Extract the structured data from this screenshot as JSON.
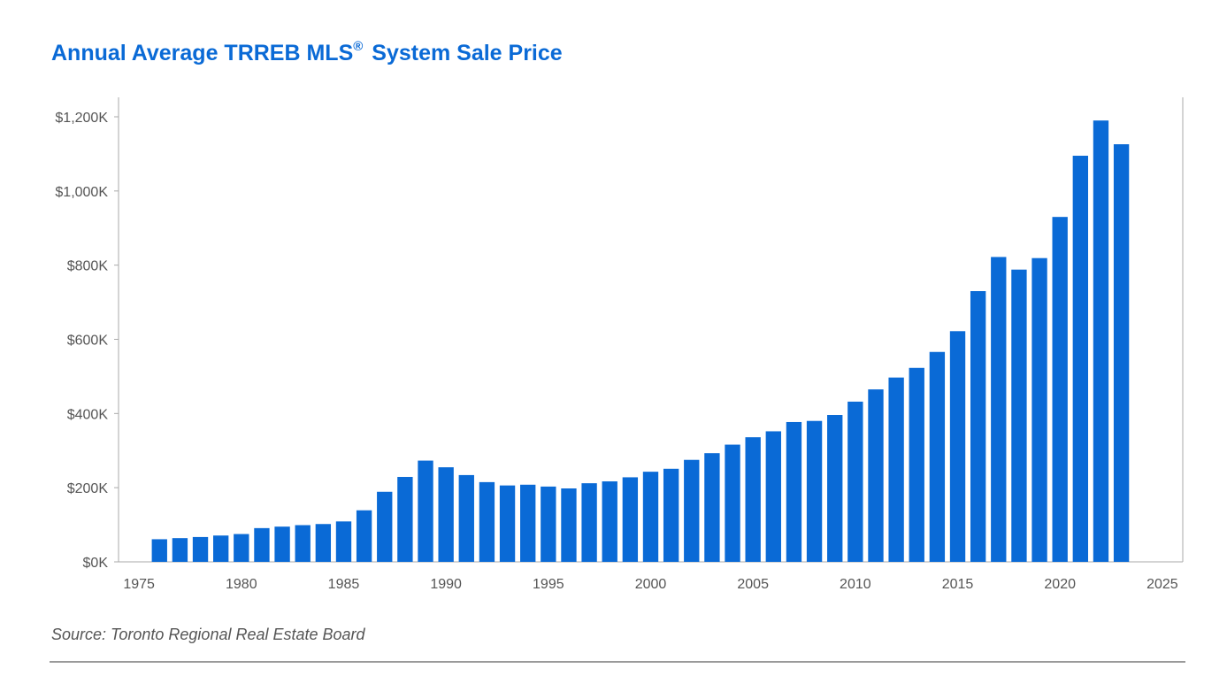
{
  "title": {
    "main": "Annual Average TRREB MLS",
    "registered": "®",
    "rest": "System Sale Price"
  },
  "source": "Source: Toronto Regional Real Estate Board",
  "colors": {
    "bar": "#0a6ad6",
    "title": "#0a6ad6",
    "axis_text": "#555555",
    "frame": "#aaaaaa"
  },
  "chart_data": {
    "type": "bar",
    "title": "Annual Average TRREB MLS® System Sale Price",
    "xlabel": "",
    "ylabel": "",
    "xlim": [
      1974,
      2026
    ],
    "ylim": [
      0,
      1200
    ],
    "grid": false,
    "legend": "none",
    "y_unit": "thousands of dollars",
    "x_ticks": [
      1975,
      1980,
      1985,
      1990,
      1995,
      2000,
      2005,
      2010,
      2015,
      2020,
      2025
    ],
    "x_tick_labels": [
      "1975",
      "1980",
      "1985",
      "1990",
      "1995",
      "2000",
      "2005",
      "2010",
      "2015",
      "2020",
      "2025"
    ],
    "y_ticks": [
      0,
      200,
      400,
      600,
      800,
      1000,
      1200
    ],
    "y_tick_labels": [
      "$0K",
      "$200K",
      "$400K",
      "$600K",
      "$800K",
      "$1,000K",
      "$1,200K"
    ],
    "x": [
      1976,
      1977,
      1978,
      1979,
      1980,
      1981,
      1982,
      1983,
      1984,
      1985,
      1986,
      1987,
      1988,
      1989,
      1990,
      1991,
      1992,
      1993,
      1994,
      1995,
      1996,
      1997,
      1998,
      1999,
      2000,
      2001,
      2002,
      2003,
      2004,
      2005,
      2006,
      2007,
      2008,
      2009,
      2010,
      2011,
      2012,
      2013,
      2014,
      2015,
      2016,
      2017,
      2018,
      2019,
      2020,
      2021,
      2022,
      2023
    ],
    "values": [
      61,
      64,
      67,
      71,
      75,
      91,
      95,
      99,
      102,
      109,
      139,
      189,
      229,
      273,
      255,
      234,
      215,
      206,
      208,
      203,
      198,
      212,
      217,
      228,
      243,
      251,
      275,
      293,
      316,
      336,
      352,
      377,
      380,
      396,
      432,
      465,
      497,
      523,
      566,
      622,
      730,
      822,
      788,
      819,
      930,
      1095,
      1190,
      1126
    ]
  }
}
